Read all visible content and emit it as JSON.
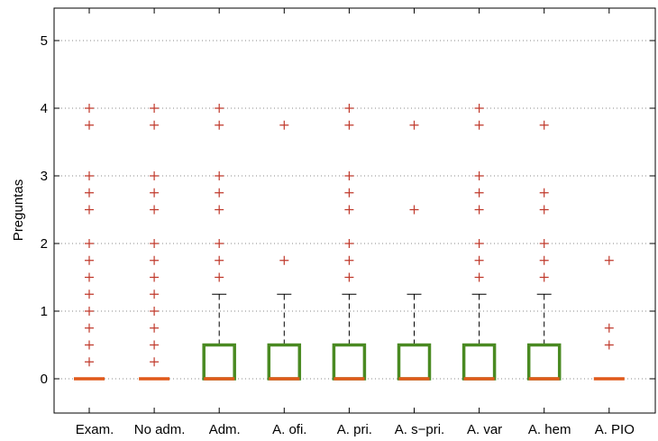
{
  "chart_data": {
    "type": "box",
    "title": "",
    "xlabel": "",
    "ylabel": "Preguntas",
    "ylim": [
      -0.5,
      5.5
    ],
    "yticks": [
      0,
      1,
      2,
      3,
      4,
      5
    ],
    "grid": "horizontal-dotted",
    "categories": [
      "Exam.",
      "No adm.",
      "Adm.",
      "A. ofi.",
      "A. pri.",
      "A. s−pri.",
      "A. var",
      "A. hem",
      "A. PIO"
    ],
    "boxes": [
      {
        "q1": 0,
        "median": 0,
        "q3": 0,
        "whisker_low": 0,
        "whisker_high": 0,
        "outliers": [
          0.25,
          0.5,
          0.75,
          1,
          1.25,
          1.5,
          1.75,
          2,
          2.5,
          2.75,
          3,
          3.75,
          4
        ]
      },
      {
        "q1": 0,
        "median": 0,
        "q3": 0,
        "whisker_low": 0,
        "whisker_high": 0,
        "outliers": [
          0.25,
          0.5,
          0.75,
          1,
          1.25,
          1.5,
          1.75,
          2,
          2.5,
          2.75,
          3,
          3.75,
          4
        ]
      },
      {
        "q1": 0,
        "median": 0,
        "q3": 0.5,
        "whisker_low": 0,
        "whisker_high": 1.25,
        "outliers": [
          1.5,
          1.75,
          2,
          2.5,
          2.75,
          3,
          3.75,
          4
        ]
      },
      {
        "q1": 0,
        "median": 0,
        "q3": 0.5,
        "whisker_low": 0,
        "whisker_high": 1.25,
        "outliers": [
          1.75,
          3.75
        ]
      },
      {
        "q1": 0,
        "median": 0,
        "q3": 0.5,
        "whisker_low": 0,
        "whisker_high": 1.25,
        "outliers": [
          1.5,
          1.75,
          2,
          2.5,
          2.75,
          3,
          3.75,
          4
        ]
      },
      {
        "q1": 0,
        "median": 0,
        "q3": 0.5,
        "whisker_low": 0,
        "whisker_high": 1.25,
        "outliers": [
          2.5,
          3.75
        ]
      },
      {
        "q1": 0,
        "median": 0,
        "q3": 0.5,
        "whisker_low": 0,
        "whisker_high": 1.25,
        "outliers": [
          1.5,
          1.75,
          2,
          2.5,
          2.75,
          3,
          3.75,
          4
        ]
      },
      {
        "q1": 0,
        "median": 0,
        "q3": 0.5,
        "whisker_low": 0,
        "whisker_high": 1.25,
        "outliers": [
          1.5,
          1.75,
          2,
          2.5,
          2.75,
          3.75
        ]
      },
      {
        "q1": 0,
        "median": 0,
        "q3": 0,
        "whisker_low": 0,
        "whisker_high": 0,
        "outliers": [
          0.5,
          0.75,
          1.75
        ]
      }
    ],
    "colors": {
      "box": "#4a8a22",
      "median": "#e0591a",
      "outlier": "#c0392b",
      "whisker": "#000000",
      "grid": "#888888"
    }
  }
}
